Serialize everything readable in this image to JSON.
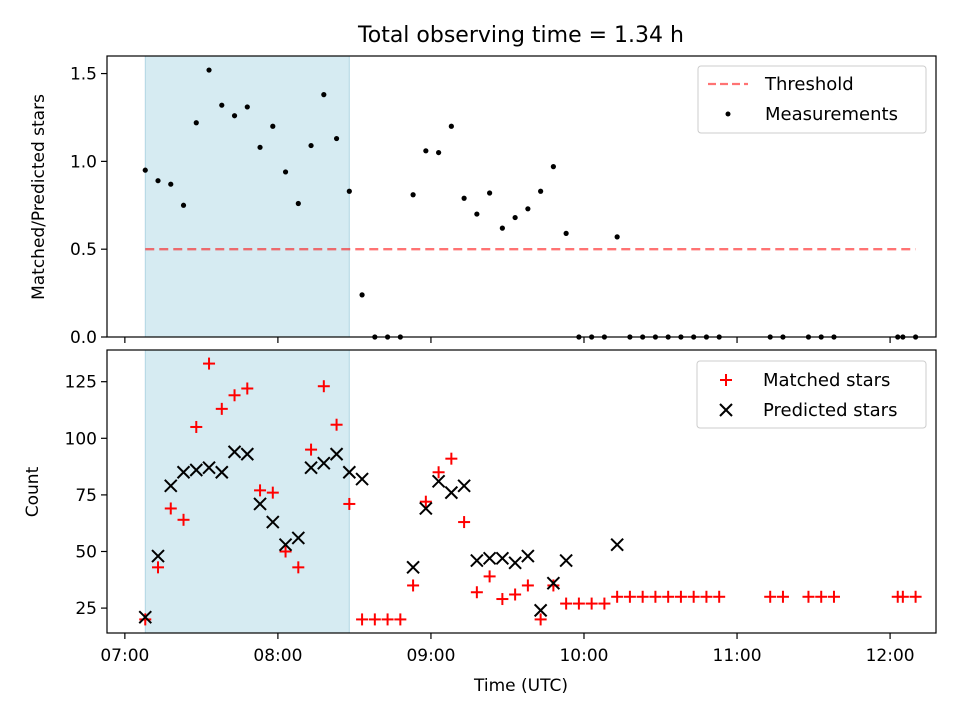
{
  "chart_data": {
    "type": "scatter",
    "title": "Total observing time = 1.34 h",
    "xlabel": "Time (UTC)",
    "x_ticks": [
      "07:00",
      "08:00",
      "09:00",
      "10:00",
      "11:00",
      "12:00"
    ],
    "x_range": [
      "06:53",
      "12:18"
    ],
    "shaded_span": [
      "07:08",
      "08:28"
    ],
    "colors": {
      "span": "#add8e6",
      "threshold": "#ff0000",
      "matched": "#ff0000",
      "predicted": "#000000",
      "measurements": "#000000"
    },
    "panels": [
      {
        "ylabel": "Matched/Predicted stars",
        "ylim": [
          0,
          1.6
        ],
        "y_ticks": [
          "0.0",
          "0.5",
          "1.0",
          "1.5"
        ],
        "legend": "upper right",
        "series": [
          {
            "name": "Threshold",
            "type": "line",
            "style": "dashed",
            "x": [
              "07:08",
              "12:10"
            ],
            "y": [
              0.5,
              0.5
            ]
          },
          {
            "name": "Measurements",
            "type": "scatter",
            "marker": "dot",
            "x": [
              "07:08",
              "07:13",
              "07:18",
              "07:23",
              "07:28",
              "07:33",
              "07:38",
              "07:43",
              "07:48",
              "07:53",
              "07:58",
              "08:03",
              "08:08",
              "08:13",
              "08:18",
              "08:23",
              "08:28",
              "08:33",
              "08:38",
              "08:43",
              "08:48",
              "08:53",
              "08:58",
              "09:03",
              "09:08",
              "09:13",
              "09:18",
              "09:23",
              "09:28",
              "09:33",
              "09:38",
              "09:43",
              "09:48",
              "09:53",
              "09:58",
              "10:03",
              "10:08",
              "10:13",
              "10:18",
              "10:23",
              "10:28",
              "10:33",
              "10:38",
              "10:43",
              "10:48",
              "10:53",
              "11:13",
              "11:18",
              "11:28",
              "11:33",
              "11:38",
              "12:03",
              "12:05",
              "12:10"
            ],
            "y": [
              0.95,
              0.89,
              0.87,
              0.75,
              1.22,
              1.52,
              1.32,
              1.26,
              1.31,
              1.08,
              1.2,
              0.94,
              0.76,
              1.09,
              1.38,
              1.13,
              0.83,
              0.24,
              0,
              0,
              0,
              0.81,
              1.06,
              1.05,
              1.2,
              0.79,
              0.7,
              0.82,
              0.62,
              0.68,
              0.73,
              0.83,
              0.97,
              0.59,
              0,
              0,
              0,
              0.57,
              0,
              0,
              0,
              0,
              0,
              0,
              0,
              0,
              0,
              0,
              0,
              0,
              0,
              0,
              0,
              0
            ]
          }
        ]
      },
      {
        "ylabel": "Count",
        "ylim": [
          14,
          139
        ],
        "y_ticks": [
          "25",
          "50",
          "75",
          "100",
          "125"
        ],
        "legend": "upper right",
        "series": [
          {
            "name": "Matched stars",
            "type": "scatter",
            "marker": "plus",
            "x": [
              "07:08",
              "07:13",
              "07:18",
              "07:23",
              "07:28",
              "07:33",
              "07:38",
              "07:43",
              "07:48",
              "07:53",
              "07:58",
              "08:03",
              "08:08",
              "08:13",
              "08:18",
              "08:23",
              "08:28",
              "08:33",
              "08:38",
              "08:43",
              "08:48",
              "08:53",
              "08:58",
              "09:03",
              "09:08",
              "09:13",
              "09:18",
              "09:23",
              "09:28",
              "09:33",
              "09:38",
              "09:43",
              "09:48",
              "09:53",
              "09:58",
              "10:03",
              "10:08",
              "10:13",
              "10:18",
              "10:23",
              "10:28",
              "10:33",
              "10:38",
              "10:43",
              "10:48",
              "10:53",
              "11:13",
              "11:18",
              "11:28",
              "11:33",
              "11:38",
              "12:03",
              "12:05",
              "12:10"
            ],
            "y": [
              20,
              43,
              69,
              64,
              105,
              133,
              113,
              119,
              122,
              77,
              76,
              50,
              43,
              95,
              123,
              106,
              71,
              20,
              20,
              20,
              20,
              35,
              72,
              85,
              91,
              63,
              32,
              39,
              29,
              31,
              35,
              20,
              35,
              27,
              27,
              27,
              27,
              30,
              30,
              30,
              30,
              30,
              30,
              30,
              30,
              30,
              30,
              30,
              30,
              30,
              30,
              30,
              30,
              30
            ]
          },
          {
            "name": "Predicted stars",
            "type": "scatter",
            "marker": "x",
            "x": [
              "07:08",
              "07:13",
              "07:18",
              "07:23",
              "07:28",
              "07:33",
              "07:38",
              "07:43",
              "07:48",
              "07:53",
              "07:58",
              "08:03",
              "08:08",
              "08:13",
              "08:18",
              "08:23",
              "08:28",
              "08:33",
              "08:53",
              "08:58",
              "09:03",
              "09:08",
              "09:13",
              "09:18",
              "09:23",
              "09:28",
              "09:33",
              "09:38",
              "09:43",
              "09:48",
              "09:53",
              "10:13"
            ],
            "y": [
              21,
              48,
              79,
              85,
              86,
              87,
              85,
              94,
              93,
              71,
              63,
              53,
              56,
              87,
              89,
              93,
              85,
              82,
              43,
              69,
              81,
              76,
              79,
              46,
              47,
              47,
              45,
              48,
              24,
              36,
              46,
              53
            ]
          }
        ]
      }
    ]
  }
}
